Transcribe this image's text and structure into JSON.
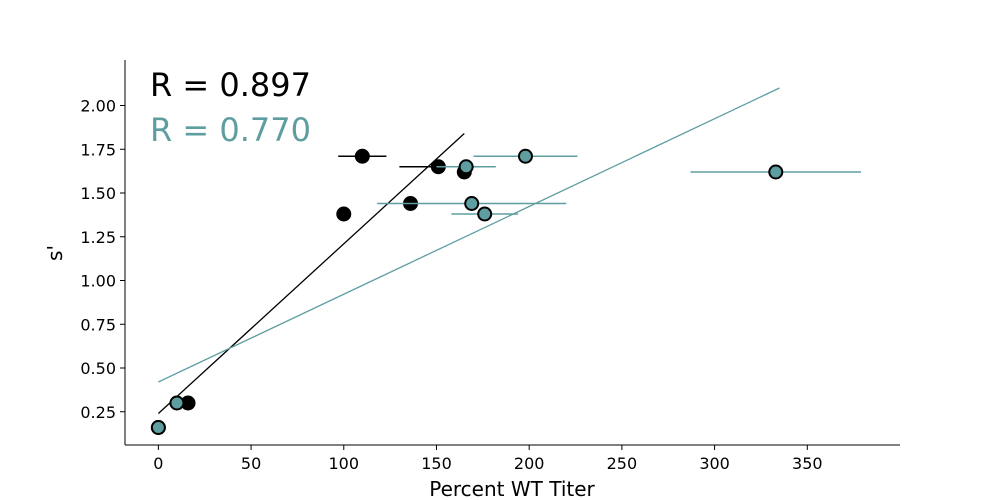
{
  "chart_data": {
    "type": "scatter",
    "title": "",
    "xlabel": "Percent WT Titer",
    "ylabel": "s'",
    "xlim": [
      -18,
      400
    ],
    "ylim": [
      0.06,
      2.26
    ],
    "xticks": [
      0,
      50,
      100,
      150,
      200,
      250,
      300,
      350
    ],
    "xtick_labels": [
      "0",
      "50",
      "100",
      "150",
      "200",
      "250",
      "300",
      "350"
    ],
    "yticks": [
      0.25,
      0.5,
      0.75,
      1.0,
      1.25,
      1.5,
      1.75,
      2.0
    ],
    "ytick_labels": [
      "0.25",
      "0.50",
      "0.75",
      "1.00",
      "1.25",
      "1.50",
      "1.75",
      "2.00"
    ],
    "grid": false,
    "spines": "left-bottom",
    "series": [
      {
        "color": "#000000",
        "r_label": "R = 0.897",
        "points": [
          {
            "x": 0,
            "y": 0.16,
            "xerr": 0
          },
          {
            "x": 16,
            "y": 0.3,
            "xerr": 0
          },
          {
            "x": 100,
            "y": 1.38,
            "xerr": 0
          },
          {
            "x": 110,
            "y": 1.71,
            "xerr": 13
          },
          {
            "x": 136,
            "y": 1.44,
            "xerr": 0
          },
          {
            "x": 151,
            "y": 1.65,
            "xerr": 21
          },
          {
            "x": 165,
            "y": 1.62,
            "xerr": 0
          }
        ],
        "fit": {
          "x": [
            0,
            165
          ],
          "y": [
            0.24,
            1.84
          ]
        }
      },
      {
        "color": "#5f9ea0",
        "r_label": "R = 0.770",
        "points": [
          {
            "x": 0,
            "y": 0.16,
            "xerr": 0
          },
          {
            "x": 10,
            "y": 0.3,
            "xerr": 0
          },
          {
            "x": 166,
            "y": 1.65,
            "xerr": 16
          },
          {
            "x": 169,
            "y": 1.44,
            "xerr": 51
          },
          {
            "x": 176,
            "y": 1.38,
            "xerr": 18
          },
          {
            "x": 198,
            "y": 1.71,
            "xerr": 28
          },
          {
            "x": 333,
            "y": 1.62,
            "xerr": 46
          }
        ],
        "fit": {
          "x": [
            0,
            335
          ],
          "y": [
            0.42,
            2.1
          ]
        }
      }
    ]
  }
}
